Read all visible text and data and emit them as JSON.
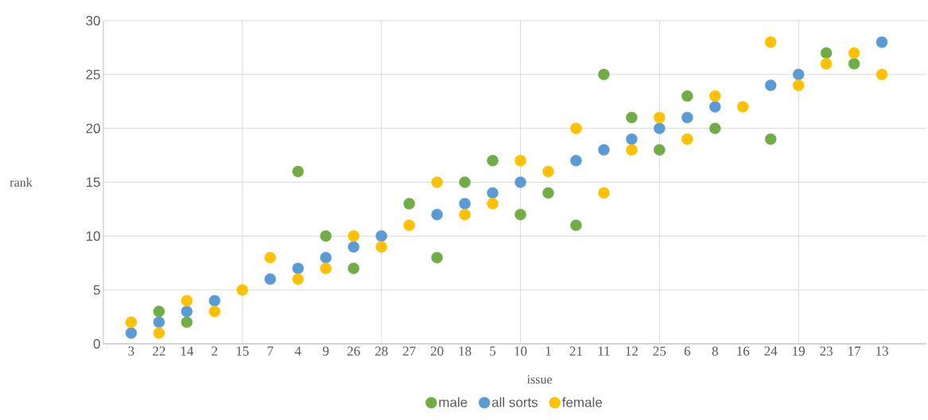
{
  "chart_data": {
    "type": "scatter",
    "xlabel": "issue",
    "ylabel": "rank",
    "categories": [
      "3",
      "22",
      "14",
      "2",
      "15",
      "7",
      "4",
      "9",
      "26",
      "28",
      "27",
      "20",
      "18",
      "5",
      "10",
      "1",
      "21",
      "11",
      "12",
      "25",
      "6",
      "8",
      "16",
      "24",
      "19",
      "23",
      "17",
      "13"
    ],
    "series": [
      {
        "name": "male",
        "color": "#70ad47",
        "values": [
          null,
          3,
          2,
          null,
          null,
          null,
          16,
          10,
          7,
          null,
          13,
          8,
          15,
          17,
          12,
          14,
          11,
          25,
          21,
          18,
          23,
          20,
          null,
          19,
          null,
          27,
          26,
          null
        ]
      },
      {
        "name": "all sorts",
        "color": "#5b9bd5",
        "values": [
          1,
          2,
          3,
          4,
          null,
          6,
          7,
          8,
          9,
          10,
          null,
          12,
          13,
          14,
          15,
          null,
          17,
          18,
          19,
          20,
          21,
          22,
          null,
          24,
          25,
          null,
          null,
          28
        ]
      },
      {
        "name": "female",
        "color": "#ffc000",
        "values": [
          2,
          1,
          4,
          3,
          5,
          8,
          6,
          7,
          10,
          9,
          11,
          15,
          12,
          13,
          17,
          16,
          20,
          14,
          18,
          21,
          19,
          23,
          22,
          28,
          24,
          26,
          27,
          25
        ]
      }
    ],
    "ylim": [
      0,
      30
    ],
    "yticks": [
      0,
      5,
      10,
      15,
      20,
      25,
      30
    ],
    "grid": true,
    "legend": "bottom",
    "marker": "circle"
  }
}
